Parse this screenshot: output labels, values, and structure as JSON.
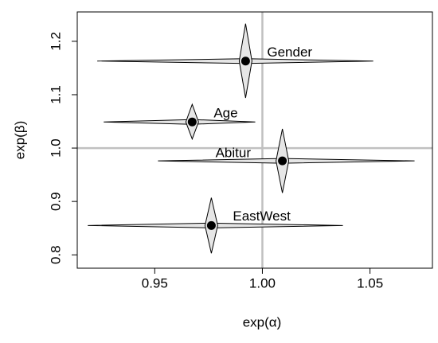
{
  "chart_data": {
    "type": "scatter",
    "x_label": "exp(α)",
    "y_label": "exp(β)",
    "xlim": [
      0.914,
      1.079
    ],
    "ylim": [
      0.775,
      1.255
    ],
    "xticks": [
      0.95,
      {
        "value": 1,
        "label": "1.00"
      },
      1.05
    ],
    "yticks": [
      0.8,
      0.9,
      {
        "value": 1,
        "label": "1.0"
      },
      1.1,
      1.2
    ],
    "vline": 1,
    "hline": 1,
    "reference_color": "#c0c0c0",
    "fill_color": "#e6e6e6",
    "series": [
      {
        "name": "Gender",
        "x": 0.9922,
        "y": 1.163,
        "xlo": 0.9233,
        "xhi": 1.0515,
        "ylo": 1.094,
        "yhi": 1.233
      },
      {
        "name": "Age",
        "x": 0.9674,
        "y": 1.049,
        "xlo": 0.9263,
        "xhi": 0.9967,
        "ylo": 1.017,
        "yhi": 1.082
      },
      {
        "name": "Abitur",
        "x": 1.0093,
        "y": 0.976,
        "xlo": 0.9515,
        "xhi": 1.0707,
        "ylo": 0.916,
        "yhi": 1.036
      },
      {
        "name": "EastWest",
        "x": 0.9763,
        "y": 0.855,
        "xlo": 0.9189,
        "xhi": 1.0374,
        "ylo": 0.803,
        "yhi": 0.907
      }
    ]
  }
}
